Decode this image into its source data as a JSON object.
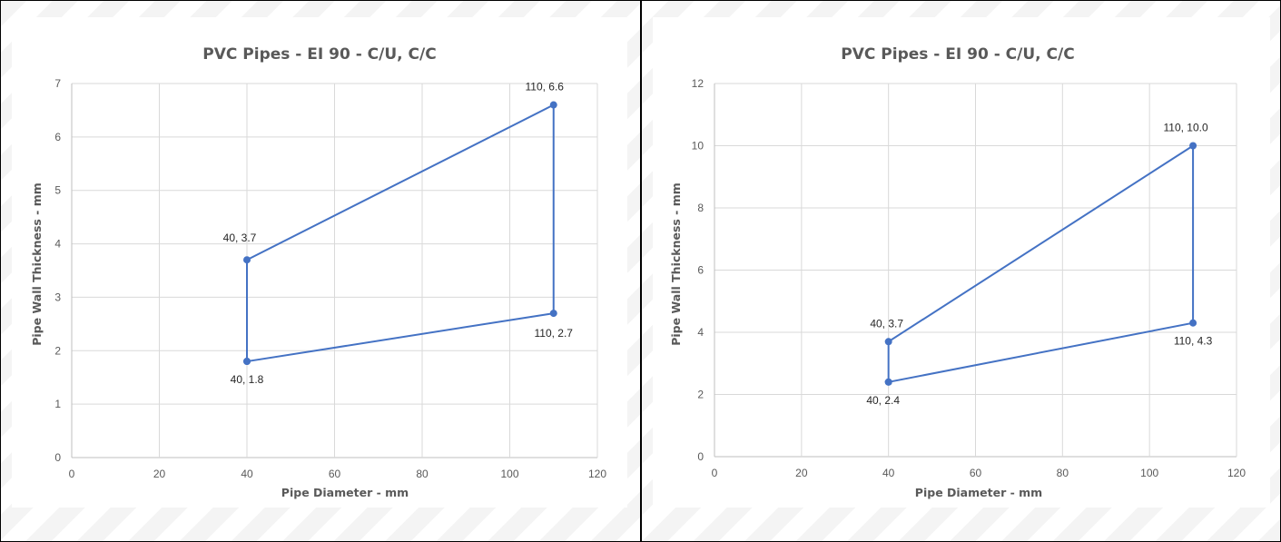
{
  "chart_data": [
    {
      "type": "scatter",
      "title": "PVC Pipes - EI 90 - C/U, C/C",
      "xlabel": "Pipe Diameter - mm",
      "ylabel": "Pipe Wall Thickness - mm",
      "xlim": [
        0,
        120
      ],
      "ylim": [
        0,
        7
      ],
      "x_ticks": [
        0,
        20,
        40,
        60,
        80,
        100,
        120
      ],
      "y_ticks": [
        0,
        1,
        2,
        3,
        4,
        5,
        6,
        7
      ],
      "grid": true,
      "legend": "none",
      "line_color": "#4472C4",
      "series": [
        {
          "points": [
            {
              "x": 40,
              "y": 1.8,
              "label": "40, 1.8"
            },
            {
              "x": 40,
              "y": 3.7,
              "label": "40, 3.7"
            },
            {
              "x": 110,
              "y": 6.6,
              "label": "110, 6.6"
            },
            {
              "x": 110,
              "y": 2.7,
              "label": "110, 2.7"
            },
            {
              "x": 40,
              "y": 1.8,
              "label": ""
            }
          ]
        }
      ]
    },
    {
      "type": "scatter",
      "title": "PVC Pipes - EI 90 - C/U, C/C",
      "xlabel": "Pipe Diameter - mm",
      "ylabel": "Pipe Wall Thickness - mm",
      "xlim": [
        0,
        120
      ],
      "ylim": [
        0,
        12
      ],
      "x_ticks": [
        0,
        20,
        40,
        60,
        80,
        100,
        120
      ],
      "y_ticks": [
        0,
        2,
        4,
        6,
        8,
        10,
        12
      ],
      "grid": true,
      "legend": "none",
      "line_color": "#4472C4",
      "series": [
        {
          "points": [
            {
              "x": 40,
              "y": 2.4,
              "label": "40, 2.4"
            },
            {
              "x": 40,
              "y": 3.7,
              "label": "40, 3.7"
            },
            {
              "x": 110,
              "y": 10.0,
              "label": "110, 10.0"
            },
            {
              "x": 110,
              "y": 4.3,
              "label": "110, 4.3"
            },
            {
              "x": 40,
              "y": 2.4,
              "label": ""
            }
          ]
        }
      ]
    }
  ]
}
